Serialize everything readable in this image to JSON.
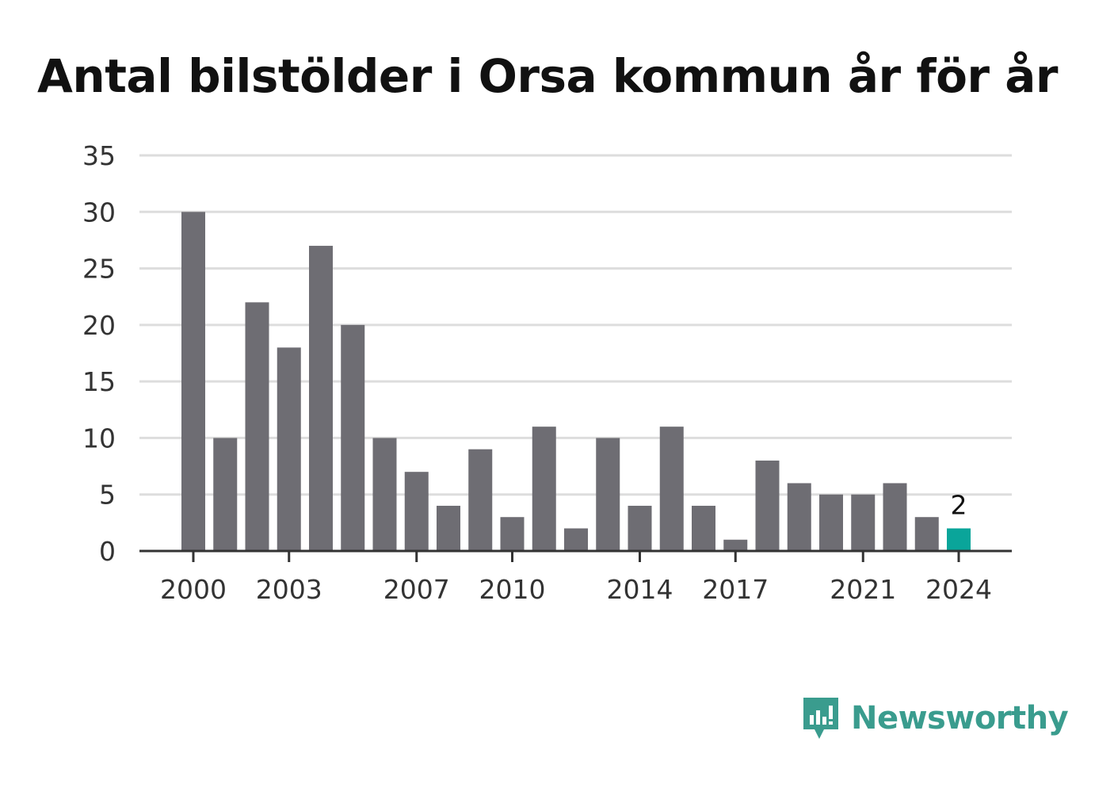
{
  "chart_data": {
    "type": "bar",
    "title": "Antal bilstölder i Orsa kommun år för år",
    "xlabel": "",
    "ylabel": "",
    "ylim": [
      0,
      35
    ],
    "y_ticks": [
      0,
      5,
      10,
      15,
      20,
      25,
      30,
      35
    ],
    "x_tick_labels": [
      "2000",
      "2003",
      "2007",
      "2010",
      "2014",
      "2017",
      "2021",
      "2024"
    ],
    "categories": [
      "2000",
      "2001",
      "2002",
      "2003",
      "2004",
      "2005",
      "2006",
      "2007",
      "2008",
      "2009",
      "2010",
      "2011",
      "2012",
      "2013",
      "2014",
      "2015",
      "2016",
      "2017",
      "2018",
      "2019",
      "2020",
      "2021",
      "2022",
      "2023",
      "2024"
    ],
    "values": [
      30,
      10,
      22,
      18,
      27,
      20,
      10,
      7,
      4,
      9,
      3,
      11,
      2,
      10,
      4,
      11,
      4,
      1,
      8,
      6,
      5,
      5,
      6,
      3,
      2
    ],
    "highlight": {
      "category": "2024",
      "label": "2"
    },
    "grid": true,
    "colors": {
      "bar": "#6e6d73",
      "highlight": "#0aa59a",
      "grid": "#dddddd",
      "axis": "#333333"
    }
  },
  "brand": {
    "name": "Newsworthy",
    "icon": "newsworthy-logo-icon"
  }
}
